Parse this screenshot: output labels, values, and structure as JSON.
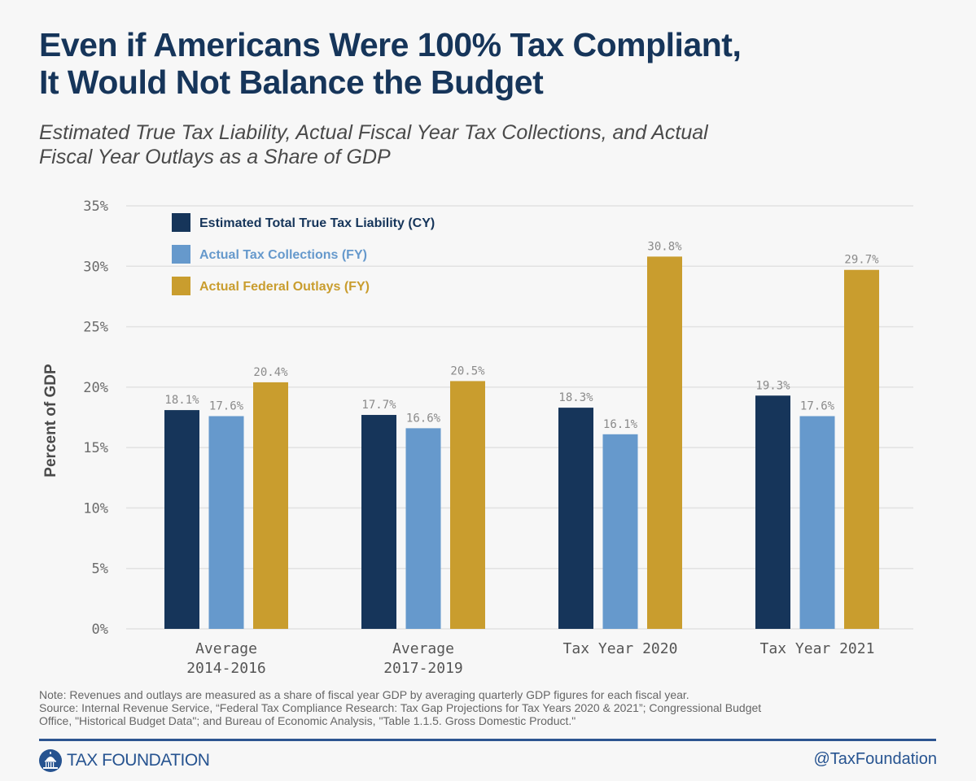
{
  "header": {
    "title_line1": "Even if Americans Were 100% Tax Compliant,",
    "title_line2": "It Would Not Balance the Budget",
    "subtitle_line1": "Estimated True Tax Liability, Actual Fiscal Year Tax Collections, and Actual",
    "subtitle_line2": "Fiscal Year Outlays as a Share of GDP"
  },
  "chart_data": {
    "type": "bar",
    "title": "Even if Americans Were 100% Tax Compliant, It Would Not Balance the Budget",
    "subtitle": "Estimated True Tax Liability, Actual Fiscal Year Tax Collections, and Actual Fiscal Year Outlays as a Share of GDP",
    "xlabel": "",
    "ylabel": "Percent of GDP",
    "ylim": [
      0,
      35
    ],
    "yticks": [
      "0%",
      "5%",
      "10%",
      "15%",
      "20%",
      "25%",
      "30%",
      "35%"
    ],
    "ytick_values": [
      0,
      5,
      10,
      15,
      20,
      25,
      30,
      35
    ],
    "grid": true,
    "legend_position": "top-left",
    "categories": [
      [
        "Average",
        "2014-2016"
      ],
      [
        "Average",
        "2017-2019"
      ],
      [
        "Tax Year 2020"
      ],
      [
        "Tax Year 2021"
      ]
    ],
    "series": [
      {
        "name": "Estimated Total True Tax Liability (CY)",
        "color": "#16355a",
        "values": [
          18.1,
          17.7,
          18.3,
          19.3
        ],
        "labels": [
          "18.1%",
          "17.7%",
          "18.3%",
          "19.3%"
        ]
      },
      {
        "name": "Actual Tax Collections (FY)",
        "color": "#6699cc",
        "values": [
          17.6,
          16.6,
          16.1,
          17.6
        ],
        "labels": [
          "17.6%",
          "16.6%",
          "16.1%",
          "17.6%"
        ]
      },
      {
        "name": "Actual Federal Outlays (FY)",
        "color": "#c99d2e",
        "values": [
          20.4,
          20.5,
          30.8,
          29.7
        ],
        "labels": [
          "20.4%",
          "20.5%",
          "30.8%",
          "29.7%"
        ]
      }
    ]
  },
  "footer": {
    "note": "Note: Revenues and outlays are measured as a share of fiscal year GDP by averaging quarterly GDP figures for each fiscal year.",
    "source_line1": "Source: Internal Revenue Service, “Federal Tax Compliance Research: Tax Gap Projections for Tax Years 2020 & 2021”; Congressional Budget",
    "source_line2": "Office, \"Historical Budget Data\"; and Bureau of Economic Analysis, \"Table 1.1.5. Gross Domestic Product.\"",
    "logo_text": "TAX FOUNDATION",
    "logo_icon": "capitol-dome-icon",
    "handle": "@TaxFoundation"
  },
  "colors": {
    "title": "#16355a",
    "rule": "#2d5590",
    "brand": "#265390",
    "background": "#f7f7f7"
  }
}
